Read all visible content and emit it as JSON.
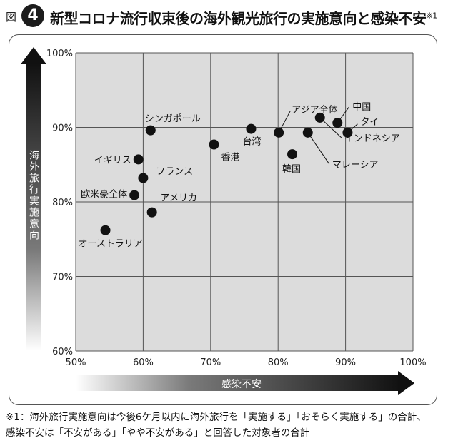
{
  "header": {
    "prefix": "図",
    "number": "4",
    "title": "新型コロナ流行収束後の海外観光旅行の実施意向と感染不安",
    "title_mark": "※1"
  },
  "footnote": {
    "line1": "※1：海外旅行実施意向は今後6ケ月以内に海外旅行を「実施する」「おそらく実施する」の合計、",
    "line2": "感染不安は「不安がある」「やや不安がある」と回答した対象者の合計"
  },
  "chart_data": {
    "type": "scatter",
    "title": "新型コロナ流行収束後の海外観光旅行の実施意向と感染不安",
    "xlabel": "感染不安",
    "ylabel": "海外旅行実施意向",
    "xlim": [
      50,
      100
    ],
    "ylim": [
      60,
      100
    ],
    "x_ticks": [
      50,
      60,
      70,
      80,
      90,
      100
    ],
    "y_ticks": [
      60,
      70,
      80,
      90,
      100
    ],
    "x_tick_labels": [
      "50%",
      "60%",
      "70%",
      "80%",
      "90%",
      "100%"
    ],
    "y_tick_labels": [
      "60%",
      "70%",
      "80%",
      "90%",
      "100%"
    ],
    "grid": true,
    "points": [
      {
        "label": "シンガポール",
        "x": 61.1,
        "y": 89.6
      },
      {
        "label": "イギリス",
        "x": 59.3,
        "y": 85.7
      },
      {
        "label": "フランス",
        "x": 60.0,
        "y": 83.2
      },
      {
        "label": "欧米豪全体",
        "x": 58.7,
        "y": 80.9
      },
      {
        "label": "アメリカ",
        "x": 61.3,
        "y": 78.6
      },
      {
        "label": "オーストラリア",
        "x": 54.4,
        "y": 76.2
      },
      {
        "label": "香港",
        "x": 70.5,
        "y": 87.7
      },
      {
        "label": "台湾",
        "x": 76.0,
        "y": 89.8
      },
      {
        "label": "アジア全体",
        "x": 80.1,
        "y": 89.3
      },
      {
        "label": "韓国",
        "x": 82.1,
        "y": 86.4
      },
      {
        "label": "マレーシア",
        "x": 84.4,
        "y": 89.3
      },
      {
        "label": "インドネシア",
        "x": 86.2,
        "y": 91.3
      },
      {
        "label": "中国",
        "x": 88.8,
        "y": 90.6
      },
      {
        "label": "タイ",
        "x": 90.3,
        "y": 89.3
      }
    ]
  }
}
